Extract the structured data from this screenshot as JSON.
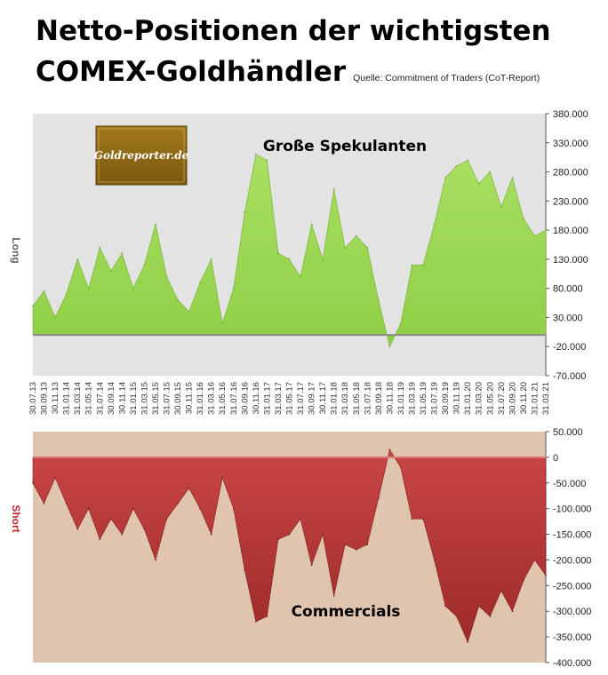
{
  "title_line1": "Netto-Positionen der wichtigsten",
  "title_line2": "COMEX-Goldhändler",
  "source": "Quelle: Commitment of Traders (CoT-Report)",
  "logo_text": "Goldreporter.de",
  "colors": {
    "top_bg": "#e3e3e3",
    "top_fill": "#99d650",
    "bottom_bg": "#e0c4ad",
    "bottom_fill": "#b43636",
    "long_label": "#666666",
    "short_label": "#c0282b"
  },
  "x_ticks": [
    "30.07.13",
    "30.09.13",
    "30.11.13",
    "31.01.14",
    "31.03.14",
    "31.05.14",
    "31.07.14",
    "30.09.14",
    "30.11.14",
    "31.01.15",
    "31.03.15",
    "31.05.15",
    "31.07.15",
    "30.09.15",
    "30.11.15",
    "31.01.16",
    "31.03.16",
    "31.05.16",
    "31.07.16",
    "30.09.16",
    "30.11.16",
    "31.01.17",
    "31.03.17",
    "31.05.17",
    "31.07.17",
    "30.09.17",
    "30.11.17",
    "31.01.18",
    "31.03.18",
    "31.05.18",
    "31.07.18",
    "30.09.18",
    "30.11.18",
    "31.01.19",
    "31.03.19",
    "31.05.19",
    "31.07.19",
    "30.09.19",
    "30.11.19",
    "31.01.20",
    "31.03.20",
    "31.05.20",
    "31.07.20",
    "30.09.20",
    "30.11.20",
    "31.01.21",
    "31.03.21"
  ],
  "chart_data": [
    {
      "type": "area",
      "annotation": "Große Spekulanten",
      "ylabel": "Long",
      "ylim": [
        -70000,
        380000
      ],
      "y_ticks": [
        "380.000",
        "330.000",
        "280.000",
        "230.000",
        "180.000",
        "130.000",
        "80.000",
        "30.000",
        "-20.000",
        "-70.000"
      ],
      "x": [
        "30.07.13",
        "30.09.13",
        "30.11.13",
        "31.01.14",
        "31.03.14",
        "31.05.14",
        "31.07.14",
        "30.09.14",
        "30.11.14",
        "31.01.15",
        "31.03.15",
        "31.05.15",
        "31.07.15",
        "30.09.15",
        "30.11.15",
        "31.01.16",
        "31.03.16",
        "31.05.16",
        "31.07.16",
        "30.09.16",
        "30.11.16",
        "31.01.17",
        "31.03.17",
        "31.05.17",
        "31.07.17",
        "30.09.17",
        "30.11.17",
        "31.01.18",
        "31.03.18",
        "31.05.18",
        "31.07.18",
        "30.09.18",
        "30.11.18",
        "31.01.19",
        "31.03.19",
        "31.05.19",
        "31.07.19",
        "30.09.19",
        "30.11.19",
        "31.01.20",
        "31.03.20",
        "31.05.20",
        "31.07.20",
        "30.09.20",
        "30.11.20",
        "31.01.21",
        "31.03.21"
      ],
      "values": [
        50000,
        75000,
        30000,
        70000,
        130000,
        80000,
        150000,
        110000,
        140000,
        80000,
        120000,
        190000,
        100000,
        60000,
        40000,
        90000,
        130000,
        20000,
        80000,
        210000,
        310000,
        300000,
        140000,
        130000,
        100000,
        190000,
        130000,
        250000,
        150000,
        170000,
        150000,
        60000,
        -20000,
        20000,
        120000,
        120000,
        190000,
        270000,
        290000,
        300000,
        260000,
        280000,
        220000,
        270000,
        200000,
        170000,
        180000
      ]
    },
    {
      "type": "area",
      "annotation": "Commercials",
      "ylabel": "Short",
      "ylim": [
        -400000,
        50000
      ],
      "y_ticks": [
        "50.000",
        "0",
        "-50.000",
        "-100.000",
        "-150.000",
        "-200.000",
        "-250.000",
        "-300.000",
        "-350.000",
        "-400.000"
      ],
      "x": [
        "30.07.13",
        "30.09.13",
        "30.11.13",
        "31.01.14",
        "31.03.14",
        "31.05.14",
        "31.07.14",
        "30.09.14",
        "30.11.14",
        "31.01.15",
        "31.03.15",
        "31.05.15",
        "31.07.15",
        "30.09.15",
        "30.11.15",
        "31.01.16",
        "31.03.16",
        "31.05.16",
        "31.07.16",
        "30.09.16",
        "30.11.16",
        "31.01.17",
        "31.03.17",
        "31.05.17",
        "31.07.17",
        "30.09.17",
        "30.11.17",
        "31.01.18",
        "31.03.18",
        "31.05.18",
        "31.07.18",
        "30.09.18",
        "30.11.18",
        "31.01.19",
        "31.03.19",
        "31.05.19",
        "31.07.19",
        "30.09.19",
        "30.11.19",
        "31.01.20",
        "31.03.20",
        "31.05.20",
        "31.07.20",
        "30.09.20",
        "30.11.20",
        "31.01.21",
        "31.03.21"
      ],
      "values": [
        -50000,
        -90000,
        -40000,
        -90000,
        -140000,
        -100000,
        -160000,
        -120000,
        -150000,
        -100000,
        -140000,
        -200000,
        -120000,
        -90000,
        -60000,
        -100000,
        -150000,
        -40000,
        -100000,
        -220000,
        -320000,
        -310000,
        -160000,
        -150000,
        -120000,
        -210000,
        -150000,
        -270000,
        -170000,
        -180000,
        -170000,
        -80000,
        15000,
        -20000,
        -120000,
        -120000,
        -200000,
        -290000,
        -310000,
        -360000,
        -290000,
        -310000,
        -260000,
        -300000,
        -240000,
        -200000,
        -230000
      ]
    }
  ]
}
